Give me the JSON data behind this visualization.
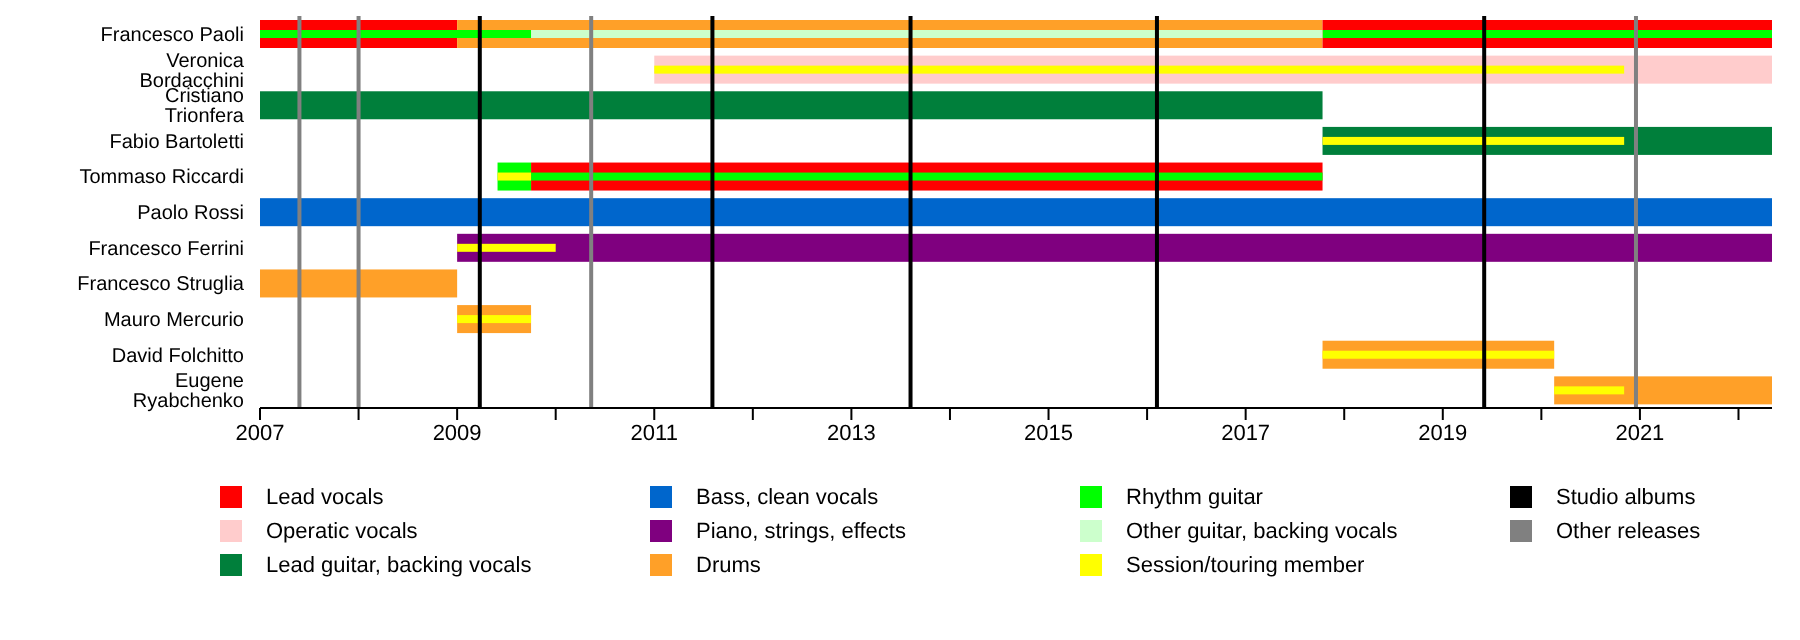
{
  "chart_data": {
    "type": "bar",
    "orientation": "horizontal",
    "legend": "bottom",
    "categories": [
      "Francesco Paoli",
      "Veronica Bordacchini",
      "Cristiano Trionfera",
      "Fabio Bartoletti",
      "Tommaso Riccardi",
      "Paolo Rossi",
      "Francesco Ferrini",
      "Francesco Struglia",
      "Mauro Mercurio",
      "David Folchitto",
      "Eugene Ryabchenko"
    ],
    "xlim": [
      2007,
      2022.34
    ],
    "xticks": [
      2007,
      {
        "value": 2008,
        "label": null
      },
      2009,
      {
        "value": 2010,
        "label": null
      },
      2011,
      {
        "value": 2012,
        "label": null
      },
      2013,
      {
        "value": 2014,
        "label": null
      },
      2015,
      {
        "value": 2016,
        "label": null
      },
      2017,
      {
        "value": 2018,
        "label": null
      },
      2019,
      {
        "value": 2020,
        "label": null
      },
      2021,
      {
        "value": 2022,
        "label": null
      }
    ],
    "series": [
      {
        "name": "Lead vocals",
        "color": "#ff0000",
        "base": [
          2007,
          null,
          null,
          null,
          2009.75,
          null,
          null,
          null,
          null,
          null,
          null
        ],
        "values": [
          2.0,
          null,
          null,
          null,
          8.03,
          null,
          null,
          null,
          null,
          null,
          null
        ]
      },
      {
        "name": "Operatic vocals",
        "color": "#ffcccc",
        "base": [
          null,
          2011,
          null,
          null,
          null,
          null,
          null,
          null,
          null,
          null,
          null
        ],
        "values": [
          null,
          11.34,
          null,
          null,
          null,
          null,
          null,
          null,
          null,
          null,
          null
        ]
      },
      {
        "name": "Lead guitar, backing vocals",
        "color": "#007f3b",
        "base": [
          null,
          null,
          2007,
          2017.78,
          null,
          null,
          null,
          null,
          null,
          null,
          null
        ],
        "values": [
          null,
          null,
          10.78,
          4.56,
          null,
          null,
          null,
          null,
          null,
          null,
          null
        ]
      },
      {
        "name": "Bass, clean vocals",
        "color": "#0066cc",
        "base": [
          null,
          null,
          null,
          null,
          null,
          2007,
          null,
          null,
          null,
          null,
          null
        ],
        "values": [
          null,
          null,
          null,
          null,
          null,
          15.34,
          null,
          null,
          null,
          null,
          null
        ]
      },
      {
        "name": "Piano, strings, effects",
        "color": "#7f007f",
        "base": [
          null,
          null,
          null,
          null,
          null,
          null,
          2009,
          null,
          null,
          null,
          null
        ],
        "values": [
          null,
          null,
          null,
          null,
          null,
          null,
          13.34,
          null,
          null,
          null,
          null
        ]
      },
      {
        "name": "Drums",
        "color": "#ffa028",
        "base": [
          2009,
          null,
          null,
          null,
          null,
          null,
          null,
          2007,
          2009,
          2017.78,
          2020.13
        ],
        "values": [
          8.78,
          null,
          null,
          null,
          null,
          null,
          null,
          2.0,
          0.75,
          2.35,
          2.21
        ]
      },
      {
        "color": "#ff0000",
        "base": [
          2017.78,
          null,
          null,
          null,
          null,
          null,
          null,
          null,
          null,
          null,
          null
        ],
        "values": [
          4.56,
          null,
          null,
          null,
          null,
          null,
          null,
          null,
          null,
          null,
          null
        ]
      },
      {
        "name": "Rhythm guitar",
        "color": "#00ff00",
        "base": [
          2007,
          null,
          null,
          null,
          2009.41,
          null,
          null,
          null,
          null,
          null,
          null
        ],
        "values": [
          2.75,
          null,
          null,
          null,
          0.34,
          null,
          null,
          null,
          null,
          null,
          null
        ]
      },
      {
        "color": "#00ff00",
        "base": [
          2017.78,
          null,
          null,
          null,
          2009.75,
          null,
          null,
          null,
          null,
          null,
          null
        ],
        "values": [
          4.56,
          null,
          null,
          null,
          8.03,
          null,
          null,
          null,
          null,
          null,
          null
        ]
      },
      {
        "name": "Other guitar, backing vocals",
        "color": "#ccffcc",
        "base": [
          2009.75,
          null,
          null,
          null,
          null,
          null,
          null,
          null,
          null,
          null,
          null
        ],
        "values": [
          8.03,
          null,
          null,
          null,
          null,
          null,
          null,
          null,
          null,
          null,
          null
        ]
      },
      {
        "name": "Session/touring member",
        "color": "#ffff00",
        "base": [
          null,
          2011,
          null,
          2017.78,
          2009.41,
          null,
          2009,
          null,
          2009,
          2017.78,
          2020.13
        ],
        "values": [
          null,
          9.84,
          null,
          3.06,
          0.34,
          null,
          1.0,
          null,
          0.75,
          2.35,
          0.71
        ]
      }
    ],
    "ref_lines": [
      {
        "axis": "x",
        "value": 2009.23,
        "label": "Studio albums",
        "color": "#000000"
      },
      {
        "axis": "x",
        "value": 2011.59,
        "label": null,
        "color": "#000000"
      },
      {
        "axis": "x",
        "value": 2013.6,
        "label": null,
        "color": "#000000"
      },
      {
        "axis": "x",
        "value": 2016.1,
        "label": null,
        "color": "#000000"
      },
      {
        "axis": "x",
        "value": 2019.42,
        "label": null,
        "color": "#000000"
      },
      {
        "axis": "x",
        "value": 2007.4,
        "label": "Other releases",
        "color": "#808080"
      },
      {
        "axis": "x",
        "value": 2008.0,
        "label": null,
        "color": "#808080"
      },
      {
        "axis": "x",
        "value": 2010.36,
        "label": null,
        "color": "#808080"
      },
      {
        "axis": "x",
        "value": 2020.96,
        "label": null,
        "color": "#808080"
      }
    ]
  }
}
